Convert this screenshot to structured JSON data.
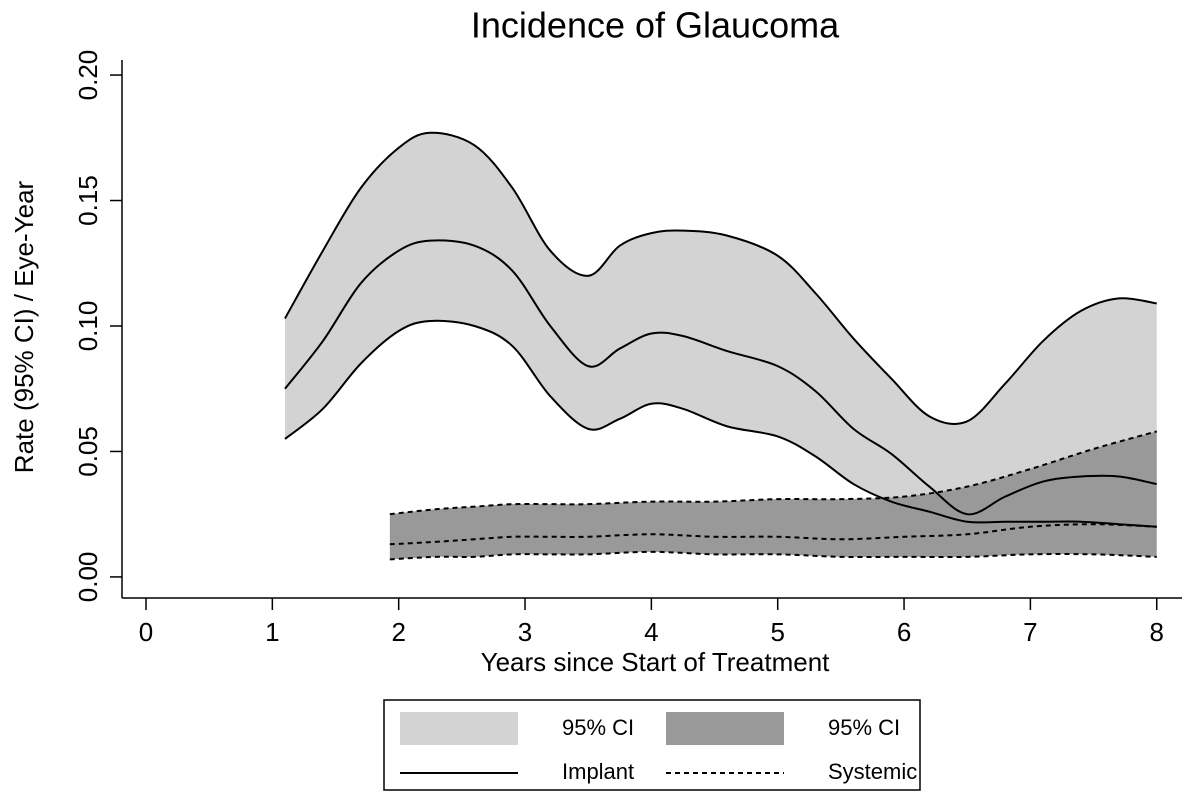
{
  "chart_data": {
    "type": "line",
    "title": "Incidence of Glaucoma",
    "x_label": "Years since Start of Treatment",
    "y_label": "Rate (95% CI) / Eye-Year",
    "xlim": [
      -0.19,
      8.2
    ],
    "ylim": [
      -0.0084,
      0.206
    ],
    "xticks": [
      0,
      1,
      2,
      3,
      4,
      5,
      6,
      7,
      8
    ],
    "yticks": [
      {
        "value": 0,
        "label": "0.00"
      },
      {
        "value": 0.05,
        "label": "0.05"
      },
      {
        "value": 0.1,
        "label": "0.10"
      },
      {
        "value": 0.15,
        "label": "0.15"
      },
      {
        "value": 0.2,
        "label": "0.20"
      }
    ],
    "series": [
      {
        "name": "Implant",
        "color": "#000000",
        "dashed": false,
        "ci_name": "95% CI",
        "ci_color": "#d3d3d3",
        "x": [
          1.1,
          1.4,
          1.7,
          2.0,
          2.25,
          2.6,
          2.9,
          3.2,
          3.5,
          3.75,
          4.0,
          4.25,
          4.6,
          5.0,
          5.3,
          5.6,
          5.9,
          6.2,
          6.5,
          6.8,
          7.1,
          7.4,
          7.7,
          8.0
        ],
        "values": [
          0.075,
          0.094,
          0.117,
          0.13,
          0.134,
          0.132,
          0.122,
          0.1,
          0.084,
          0.091,
          0.097,
          0.096,
          0.09,
          0.084,
          0.074,
          0.059,
          0.049,
          0.036,
          0.025,
          0.032,
          0.038,
          0.04,
          0.04,
          0.037
        ],
        "lower": [
          0.055,
          0.067,
          0.085,
          0.098,
          0.102,
          0.1,
          0.092,
          0.072,
          0.059,
          0.063,
          0.069,
          0.067,
          0.06,
          0.056,
          0.048,
          0.037,
          0.03,
          0.026,
          0.022,
          0.022,
          0.022,
          0.022,
          0.021,
          0.02
        ],
        "upper": [
          0.103,
          0.13,
          0.155,
          0.171,
          0.177,
          0.172,
          0.155,
          0.13,
          0.12,
          0.132,
          0.137,
          0.138,
          0.136,
          0.128,
          0.113,
          0.095,
          0.079,
          0.064,
          0.062,
          0.077,
          0.094,
          0.106,
          0.111,
          0.109
        ]
      },
      {
        "name": "Systemic",
        "color": "#000000",
        "dashed": true,
        "ci_name": "95% CI",
        "ci_color": "#999999",
        "x": [
          1.93,
          2.3,
          2.6,
          2.9,
          3.2,
          3.5,
          4.0,
          4.5,
          5.0,
          5.5,
          6.0,
          6.5,
          7.0,
          7.5,
          8.0
        ],
        "values": [
          0.013,
          0.014,
          0.015,
          0.016,
          0.016,
          0.016,
          0.017,
          0.016,
          0.016,
          0.015,
          0.016,
          0.017,
          0.02,
          0.021,
          0.02
        ],
        "lower": [
          0.007,
          0.008,
          0.008,
          0.009,
          0.009,
          0.009,
          0.01,
          0.009,
          0.009,
          0.008,
          0.008,
          0.008,
          0.009,
          0.009,
          0.008
        ],
        "upper": [
          0.025,
          0.027,
          0.028,
          0.029,
          0.029,
          0.029,
          0.03,
          0.03,
          0.031,
          0.031,
          0.032,
          0.036,
          0.043,
          0.051,
          0.058
        ]
      }
    ]
  }
}
